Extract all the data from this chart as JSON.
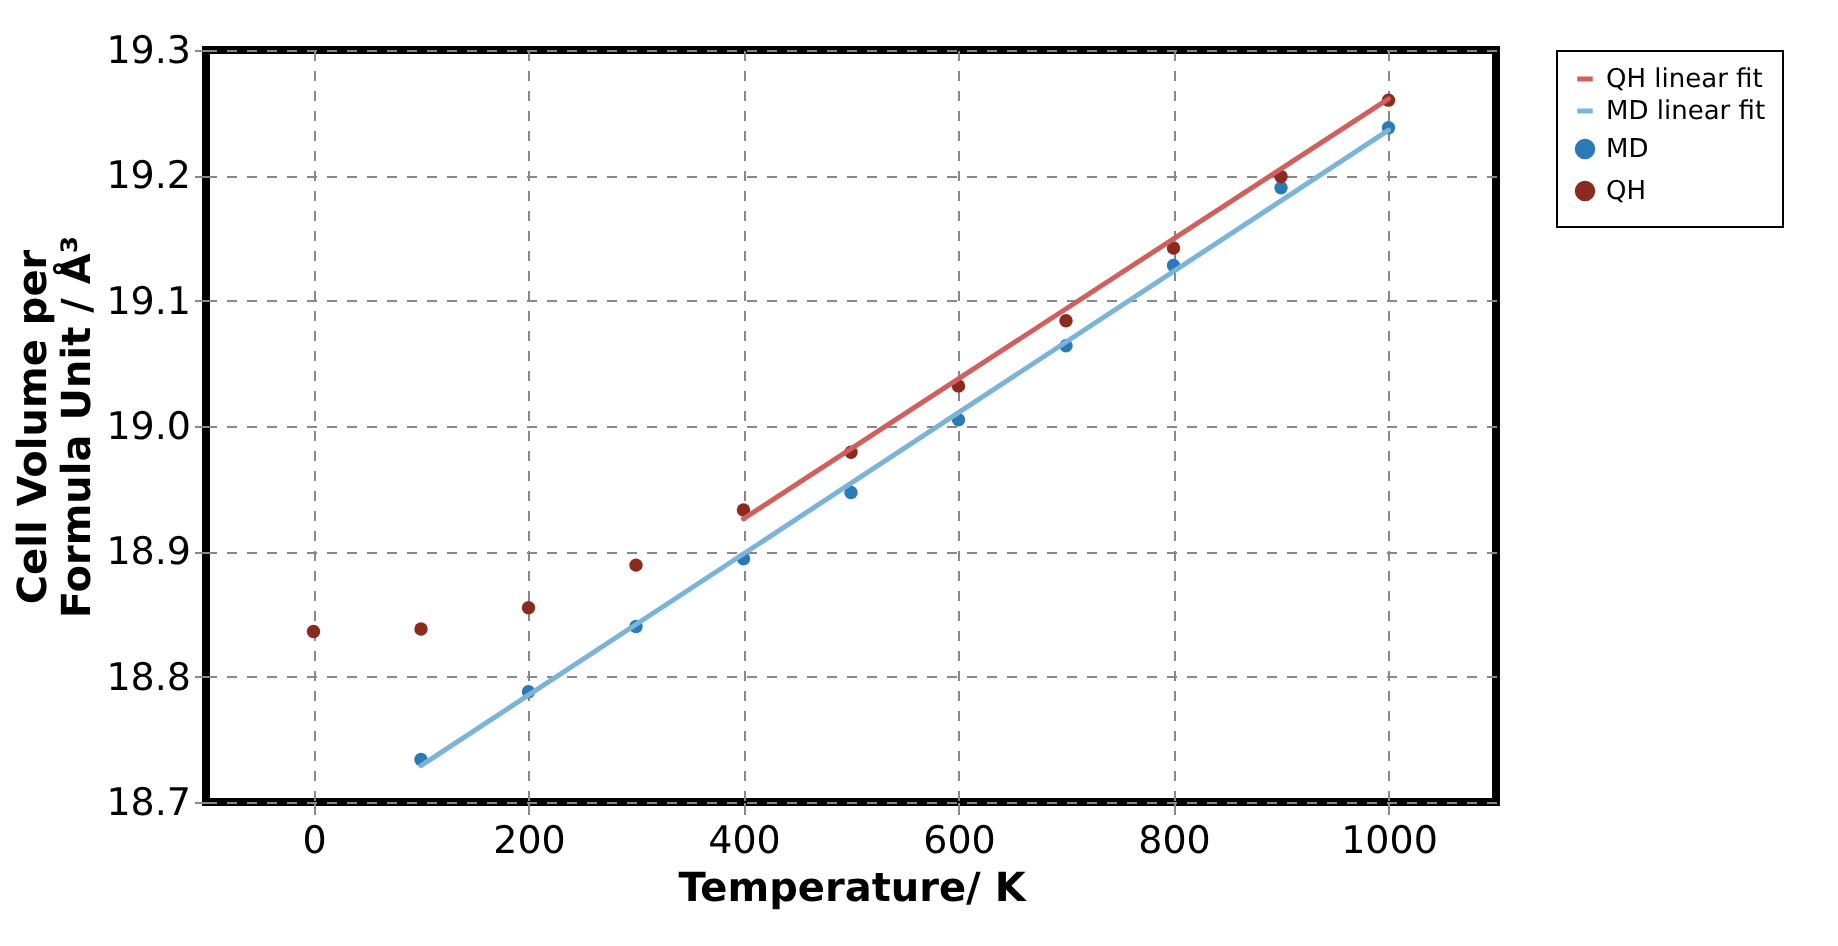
{
  "chart_data": {
    "type": "scatter",
    "xlabel": "Temperature/ K",
    "ylabel": "Cell Volume per\nFormula Unit / Å³",
    "xlim": [
      -100,
      1100
    ],
    "xticks": [
      0,
      200,
      400,
      600,
      800,
      {
        "value": 1000,
        "label": "1000"
      }
    ],
    "ylim": [
      18.7,
      19.3
    ],
    "yticks": [
      18.7,
      18.8,
      18.9,
      {
        "value": 19.0,
        "label": "19.0"
      },
      19.1,
      19.2,
      19.3
    ],
    "grid": true,
    "legend": "top right",
    "series": [
      {
        "name": "QH linear fit",
        "type": "line",
        "color": "#d0605e",
        "marker": "none",
        "line_style": "solid",
        "x": [
          400,
          1000
        ],
        "values": [
          18.926,
          19.261
        ]
      },
      {
        "name": "MD linear fit",
        "type": "line",
        "color": "#7bb3d9",
        "marker": "none",
        "line_style": "solid",
        "x": [
          100,
          1000
        ],
        "values": [
          18.729,
          19.236
        ]
      },
      {
        "name": "MD",
        "type": "scatter",
        "color": "#2a7ab5",
        "marker": "circle",
        "x": [
          100,
          200,
          300,
          400,
          500,
          600,
          700,
          800,
          900,
          1000
        ],
        "values": [
          18.734,
          18.788,
          18.84,
          18.894,
          18.947,
          19.005,
          19.064,
          19.128,
          19.19,
          19.238
        ]
      },
      {
        "name": "QH",
        "type": "scatter",
        "color": "#8b2a1e",
        "marker": "circle",
        "x": [
          0,
          100,
          200,
          300,
          400,
          500,
          600,
          700,
          800,
          900,
          1000
        ],
        "values": [
          18.836,
          18.838,
          18.855,
          18.889,
          18.933,
          18.979,
          19.032,
          19.084,
          19.142,
          19.199,
          19.26
        ]
      }
    ]
  }
}
